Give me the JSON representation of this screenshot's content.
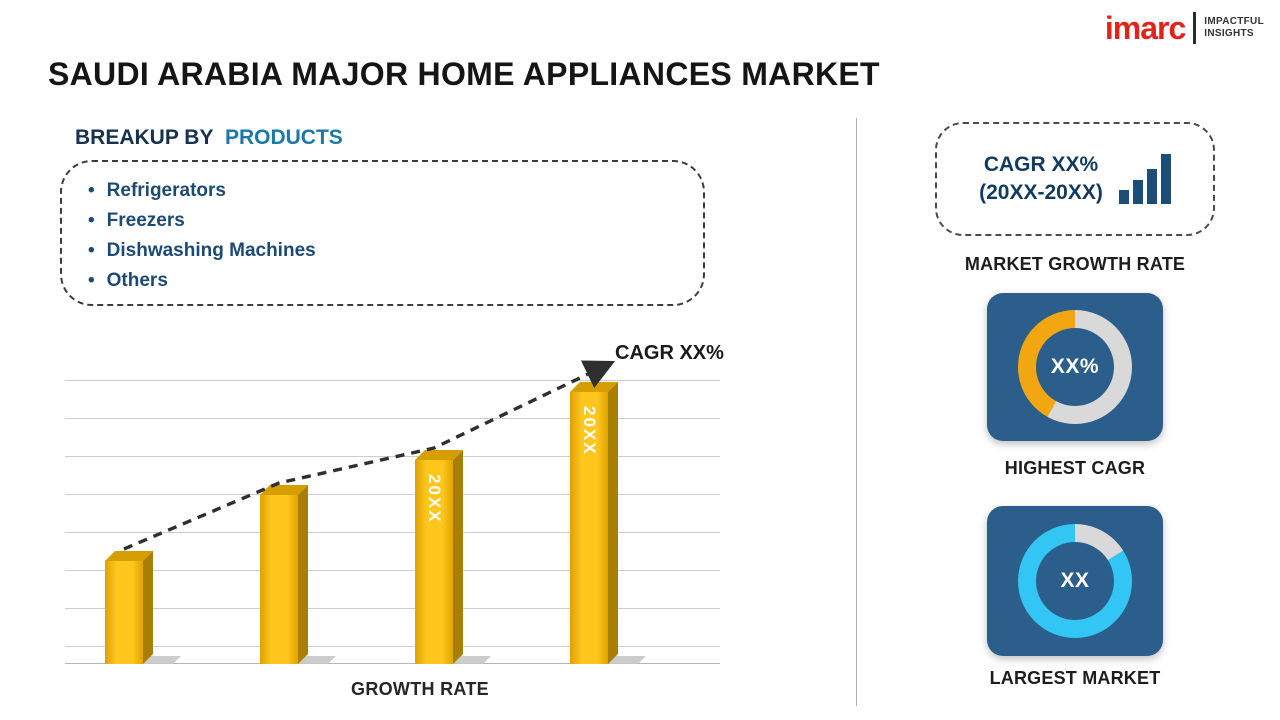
{
  "logo": {
    "brand": "imarc",
    "tagline_line1": "IMPACTFUL",
    "tagline_line2": "INSIGHTS",
    "brand_color": "#e2231a"
  },
  "header": {
    "title": "SAUDI ARABIA MAJOR HOME APPLIANCES MARKET"
  },
  "breakup": {
    "heading_prefix": "BREAKUP BY",
    "heading_highlight": "PRODUCTS",
    "items": [
      "Refrigerators",
      "Freezers",
      "Dishwashing Machines",
      "Others"
    ]
  },
  "chart_data": {
    "type": "bar",
    "title": "GROWTH RATE",
    "xlabel": "GROWTH RATE",
    "ylabel": "",
    "categories": [
      "",
      "",
      "20XX",
      "20XX"
    ],
    "values": [
      38,
      62,
      75,
      100
    ],
    "value_note": "relative heights; no numeric axis shown in source",
    "ylim": [
      0,
      100
    ],
    "grid": true,
    "bar_color": "#F7B800",
    "trend": {
      "label": "CAGR XX%",
      "style": "dashed-arrow"
    }
  },
  "right_panel": {
    "growth_box": {
      "line1": "CAGR XX%",
      "line2": "(20XX-20XX)",
      "icon": "ascending-bars-icon"
    },
    "growth_box_caption": "MARKET GROWTH RATE",
    "highest_cagr": {
      "center_value": "XX%",
      "caption": "HIGHEST CAGR",
      "ring_accent": "#F2A712",
      "ring_base": "#D9D9D9",
      "card_color": "#2B5E8A",
      "fill_percent": 42
    },
    "largest_market": {
      "center_value": "XX",
      "caption": "LARGEST MARKET",
      "ring_accent": "#33C6F4",
      "ring_base": "#D9D9D9",
      "card_color": "#2B5E8A",
      "fill_percent": 84
    }
  }
}
